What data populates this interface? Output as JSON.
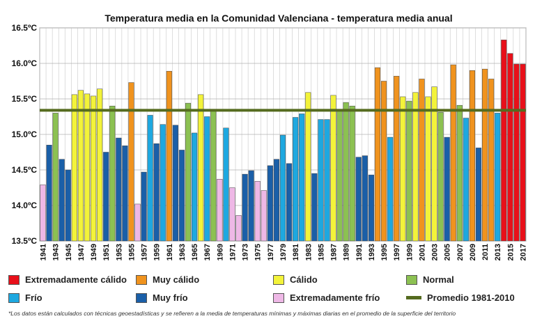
{
  "chart_data": {
    "type": "bar",
    "title": "Temperatura media en la Comunidad Valenciana - temperatura media anual",
    "ylim": [
      13.5,
      16.5
    ],
    "yticks": [
      "13.5ºC",
      "14.0ºC",
      "14.5ºC",
      "15.0ºC",
      "15.5ºC",
      "16.0ºC",
      "16.5ºC"
    ],
    "grid": true,
    "years": [
      1941,
      1942,
      1943,
      1944,
      1945,
      1946,
      1947,
      1948,
      1949,
      1950,
      1951,
      1952,
      1953,
      1954,
      1955,
      1956,
      1957,
      1958,
      1959,
      1960,
      1961,
      1962,
      1963,
      1964,
      1965,
      1966,
      1967,
      1968,
      1969,
      1970,
      1971,
      1972,
      1973,
      1974,
      1975,
      1976,
      1977,
      1978,
      1979,
      1980,
      1981,
      1982,
      1983,
      1984,
      1985,
      1986,
      1987,
      1988,
      1989,
      1990,
      1991,
      1992,
      1993,
      1994,
      1995,
      1996,
      1997,
      1998,
      1999,
      2000,
      2001,
      2002,
      2003,
      2004,
      2005,
      2006,
      2007,
      2008,
      2009,
      2010,
      2011,
      2012,
      2013,
      2014,
      2015,
      2016,
      2017
    ],
    "xtick_labels": [
      "1941",
      "1943",
      "1945",
      "1947",
      "1949",
      "1951",
      "1953",
      "1955",
      "1957",
      "1959",
      "1961",
      "1963",
      "1965",
      "1967",
      "1969",
      "1971",
      "1973",
      "1975",
      "1977",
      "1979",
      "1981",
      "1983",
      "1985",
      "1987",
      "1989",
      "1991",
      "1993",
      "1995",
      "1997",
      "1999",
      "2001",
      "2003",
      "2005",
      "2007",
      "2009",
      "2011",
      "2013",
      "2015",
      "2017"
    ],
    "values": [
      14.29,
      14.85,
      15.3,
      14.65,
      14.5,
      15.56,
      15.62,
      15.57,
      15.54,
      15.64,
      14.75,
      15.4,
      14.95,
      14.84,
      15.73,
      14.02,
      14.47,
      15.27,
      14.87,
      15.14,
      15.89,
      15.13,
      14.78,
      15.44,
      15.02,
      15.56,
      15.25,
      15.35,
      14.37,
      15.09,
      14.25,
      13.86,
      14.44,
      14.49,
      14.34,
      14.21,
      14.56,
      14.65,
      14.99,
      14.59,
      15.24,
      15.29,
      15.59,
      14.45,
      15.21,
      15.21,
      15.55,
      15.35,
      15.45,
      15.4,
      14.68,
      14.7,
      14.43,
      15.94,
      15.75,
      14.96,
      15.82,
      15.53,
      15.47,
      15.59,
      15.78,
      15.53,
      15.67,
      15.31,
      14.96,
      15.98,
      15.41,
      15.23,
      15.9,
      14.81,
      15.92,
      15.78,
      15.3,
      16.33,
      16.14,
      15.99,
      15.99
    ],
    "categories_per_bar": [
      "ef",
      "mf",
      "n",
      "mf",
      "mf",
      "c",
      "c",
      "c",
      "c",
      "c",
      "mf",
      "n",
      "mf",
      "mf",
      "mc",
      "ef",
      "mf",
      "f",
      "mf",
      "f",
      "mc",
      "mf",
      "mf",
      "n",
      "f",
      "c",
      "f",
      "n",
      "ef",
      "f",
      "ef",
      "ef",
      "mf",
      "mf",
      "ef",
      "ef",
      "mf",
      "mf",
      "f",
      "mf",
      "f",
      "f",
      "c",
      "mf",
      "f",
      "f",
      "c",
      "n",
      "n",
      "n",
      "mf",
      "mf",
      "mf",
      "mc",
      "mc",
      "f",
      "mc",
      "c",
      "n",
      "c",
      "mc",
      "c",
      "c",
      "n",
      "mf",
      "mc",
      "n",
      "f",
      "mc",
      "mf",
      "mc",
      "mc",
      "f",
      "ec",
      "ec",
      "ec",
      "ec"
    ],
    "average": 15.34,
    "average_label": "Promedio 1981-2010",
    "legend": [
      {
        "key": "ec",
        "label": "Extremadamente cálido",
        "color": "#e8101a"
      },
      {
        "key": "mc",
        "label": "Muy cálido",
        "color": "#f0931e"
      },
      {
        "key": "c",
        "label": "Cálido",
        "color": "#f3f33a"
      },
      {
        "key": "n",
        "label": "Normal",
        "color": "#8cc152"
      },
      {
        "key": "f",
        "label": "Frío",
        "color": "#1ea8e0"
      },
      {
        "key": "mf",
        "label": "Muy frío",
        "color": "#1a5fa8"
      },
      {
        "key": "ef",
        "label": "Extremadamente frío",
        "color": "#eeb8e6"
      }
    ],
    "average_color": "#556b1f"
  },
  "footnote": "*Los datos están calculados con técnicas geoestadísticas y se refieren a la media de temperaturas mínimas y máximas diarias en el promedio de la superficie del territorio"
}
